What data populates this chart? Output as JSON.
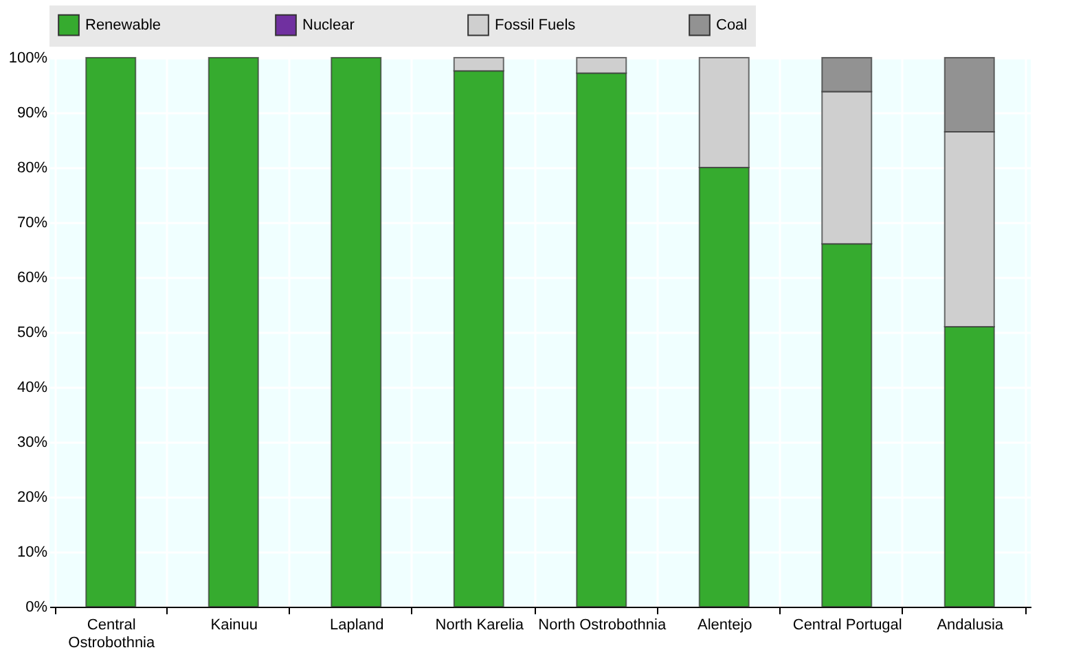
{
  "chart_data": {
    "type": "bar",
    "stacked": true,
    "categories": [
      "Central Ostrobothnia",
      "Kainuu",
      "Lapland",
      "North Karelia",
      "North Ostrobothnia",
      "Alentejo",
      "Central Portugal",
      "Andalusia"
    ],
    "series": [
      {
        "name": "Renewable",
        "color": "#36ab2f",
        "values": [
          100,
          100,
          100,
          97.6,
          97.2,
          80.0,
          66.1,
          51.0
        ]
      },
      {
        "name": "Nuclear",
        "color": "#7030a0",
        "values": [
          null,
          null,
          null,
          null,
          null,
          null,
          null,
          null
        ]
      },
      {
        "name": "Fossil Fuels",
        "color": "#cfcfcf",
        "values": [
          null,
          null,
          null,
          2.4,
          2.8,
          20.0,
          27.7,
          35.5
        ]
      },
      {
        "name": "Coal",
        "color": "#929292",
        "values": [
          null,
          null,
          null,
          null,
          null,
          null,
          6.2,
          13.5
        ]
      }
    ],
    "ylim": [
      0,
      100
    ],
    "yticks": [
      {
        "value": 0,
        "label": "0%"
      },
      {
        "value": 10,
        "label": "10%"
      },
      {
        "value": 20,
        "label": "20%"
      },
      {
        "value": 30,
        "label": "30%"
      },
      {
        "value": 40,
        "label": "40%"
      },
      {
        "value": 50,
        "label": "50%"
      },
      {
        "value": 60,
        "label": "60%"
      },
      {
        "value": 70,
        "label": "70%"
      },
      {
        "value": 80,
        "label": "80%"
      },
      {
        "value": 90,
        "label": "90%"
      },
      {
        "value": 100,
        "label": "100%"
      }
    ],
    "grid": true,
    "legend": "top"
  }
}
